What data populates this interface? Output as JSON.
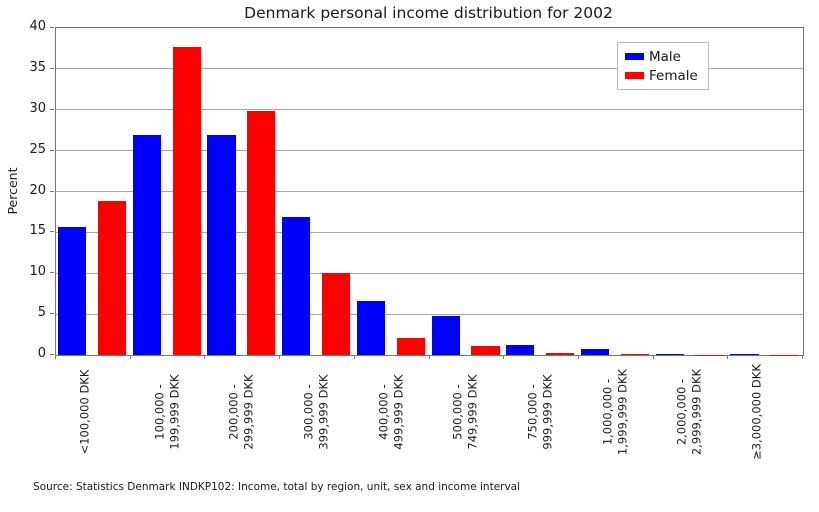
{
  "source_note": "Source: Statistics Denmark INDKP102: Income, total by region, unit, sex and income interval",
  "chart_data": {
    "type": "bar",
    "title": "Denmark personal income distribution for 2002",
    "xlabel": "",
    "ylabel": "Percent",
    "ylim": [
      0,
      40
    ],
    "yticks": [
      0,
      5,
      10,
      15,
      20,
      25,
      30,
      35,
      40
    ],
    "grid": true,
    "legend_position": "upper right",
    "categories": [
      "<100,000 DKK",
      "100,000 -\n199,999 DKK",
      "200,000 -\n299,999 DKK",
      "300,000 -\n399,999 DKK",
      "400,000 -\n499,999 DKK",
      "500,000 -\n749,999 DKK",
      "750,000 -\n999,999 DKK",
      "1,000,000 -\n1,999,999 DKK",
      "2,000,000 -\n2,999,999 DKK",
      "≥3,000,000 DKK"
    ],
    "series": [
      {
        "name": "Male",
        "color": "#0000ff",
        "values": [
          15.6,
          26.9,
          26.9,
          16.9,
          6.6,
          4.8,
          1.2,
          0.7,
          0.15,
          0.1
        ]
      },
      {
        "name": "Female",
        "color": "#ff0000",
        "values": [
          18.8,
          37.7,
          29.9,
          10.0,
          2.1,
          1.1,
          0.2,
          0.1,
          0.05,
          0.03
        ]
      }
    ],
    "grid_color": "#a6a6a6",
    "spine_color": "#777777",
    "legend_border_color": "#bbbbbb"
  }
}
